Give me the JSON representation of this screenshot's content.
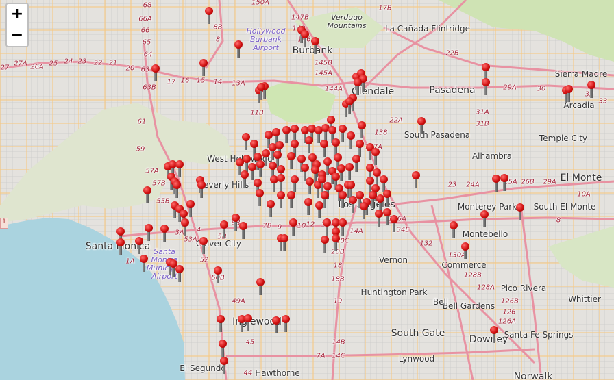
{
  "map": {
    "zoom_in_label": "+",
    "zoom_out_label": "−",
    "places": [
      {
        "name": "Burbank",
        "big": true
      },
      {
        "name": "Glendale",
        "big": true
      },
      {
        "name": "Pasadena",
        "big": true
      },
      {
        "name": "La Cañada Flintridge"
      },
      {
        "name": "Sierra Madre"
      },
      {
        "name": "Arcadia"
      },
      {
        "name": "Temple City"
      },
      {
        "name": "South Pasadena"
      },
      {
        "name": "Alhambra"
      },
      {
        "name": "El Monte",
        "big": true
      },
      {
        "name": "South El Monte"
      },
      {
        "name": "Monterey Park"
      },
      {
        "name": "Montebello"
      },
      {
        "name": "Commerce"
      },
      {
        "name": "Pico Rivera"
      },
      {
        "name": "Whittier"
      },
      {
        "name": "Downey",
        "big": true
      },
      {
        "name": "Santa Fe Springs"
      },
      {
        "name": "Bell Gardens"
      },
      {
        "name": "Bell"
      },
      {
        "name": "Huntington Park"
      },
      {
        "name": "Vernon"
      },
      {
        "name": "South Gate",
        "big": true
      },
      {
        "name": "Lynwood"
      },
      {
        "name": "Hawthorne"
      },
      {
        "name": "El Segundo"
      },
      {
        "name": "Inglewood",
        "big": true
      },
      {
        "name": "Culver City"
      },
      {
        "name": "Santa Monica",
        "big": true
      },
      {
        "name": "Beverly Hills"
      },
      {
        "name": "West Hollywood"
      },
      {
        "name": "Los Angeles",
        "big": true
      },
      {
        "name": "Norwalk",
        "big": true
      }
    ],
    "airports": [
      "Hollywood Burbank Airport",
      "Santa Monica Municipal Airport"
    ],
    "mountains": [
      "Verdugo Mountains"
    ],
    "exits": [
      "27",
      "27A",
      "26A",
      "25",
      "24",
      "23",
      "22",
      "21",
      "20",
      "63",
      "63B",
      "64",
      "65",
      "66",
      "66A",
      "68",
      "17",
      "16",
      "15",
      "14",
      "13A",
      "8B",
      "8",
      "148",
      "150A",
      "147B",
      "146",
      "145B",
      "145A",
      "144A",
      "11B",
      "17B",
      "22B",
      "29A",
      "30",
      "31A",
      "31B",
      "32",
      "33",
      "59",
      "61",
      "57A",
      "57B",
      "55B",
      "53A",
      "52",
      "50B",
      "49A",
      "45",
      "44",
      "18",
      "18B",
      "19",
      "20B",
      "20C",
      "14A",
      "14B",
      "14C",
      "10",
      "9",
      "7A",
      "126",
      "126A",
      "126B",
      "128A",
      "128B",
      "130A",
      "132",
      "134E",
      "136A",
      "137A",
      "138",
      "22A",
      "23",
      "24A",
      "25A",
      "26B",
      "29A",
      "10A",
      "8",
      "1A",
      "3A",
      "4",
      "12",
      "11",
      "7B",
      "6B",
      "5B"
    ],
    "edge_badge": "1"
  }
}
